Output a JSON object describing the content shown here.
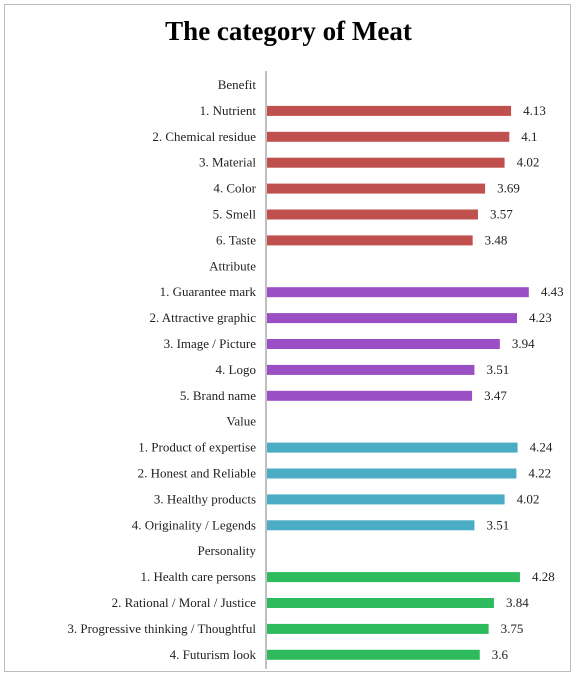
{
  "chart_data": {
    "type": "bar",
    "orientation": "horizontal",
    "title": "The category of Meat",
    "xlim": [
      0,
      5
    ],
    "grid": false,
    "legend": "none",
    "rows": [
      {
        "kind": "header",
        "label": "Benefit"
      },
      {
        "kind": "bar",
        "label": "1. Nutrient",
        "value": 4.13,
        "value_label": "4.13",
        "group": "Benefit"
      },
      {
        "kind": "bar",
        "label": "2. Chemical residue",
        "value": 4.1,
        "value_label": "4.1",
        "group": "Benefit"
      },
      {
        "kind": "bar",
        "label": "3. Material",
        "value": 4.02,
        "value_label": "4.02",
        "group": "Benefit"
      },
      {
        "kind": "bar",
        "label": "4. Color",
        "value": 3.69,
        "value_label": "3.69",
        "group": "Benefit"
      },
      {
        "kind": "bar",
        "label": "5. Smell",
        "value": 3.57,
        "value_label": "3.57",
        "group": "Benefit"
      },
      {
        "kind": "bar",
        "label": "6. Taste",
        "value": 3.48,
        "value_label": "3.48",
        "group": "Benefit"
      },
      {
        "kind": "header",
        "label": "Attribute"
      },
      {
        "kind": "bar",
        "label": "1. Guarantee mark",
        "value": 4.43,
        "value_label": "4.43",
        "group": "Attribute"
      },
      {
        "kind": "bar",
        "label": "2. Attractive graphic",
        "value": 4.23,
        "value_label": "4.23",
        "group": "Attribute"
      },
      {
        "kind": "bar",
        "label": "3. Image / Picture",
        "value": 3.94,
        "value_label": "3.94",
        "group": "Attribute"
      },
      {
        "kind": "bar",
        "label": "4. Logo",
        "value": 3.51,
        "value_label": "3.51",
        "group": "Attribute"
      },
      {
        "kind": "bar",
        "label": "5. Brand name",
        "value": 3.47,
        "value_label": "3.47",
        "group": "Attribute"
      },
      {
        "kind": "header",
        "label": "Value"
      },
      {
        "kind": "bar",
        "label": "1. Product of expertise",
        "value": 4.24,
        "value_label": "4.24",
        "group": "Value"
      },
      {
        "kind": "bar",
        "label": "2. Honest and Reliable",
        "value": 4.22,
        "value_label": "4.22",
        "group": "Value"
      },
      {
        "kind": "bar",
        "label": "3. Healthy products",
        "value": 4.02,
        "value_label": "4.02",
        "group": "Value"
      },
      {
        "kind": "bar",
        "label": "4. Originality  / Legends",
        "value": 3.51,
        "value_label": "3.51",
        "group": "Value"
      },
      {
        "kind": "header",
        "label": "Personality"
      },
      {
        "kind": "bar",
        "label": "1. Health care persons",
        "value": 4.28,
        "value_label": "4.28",
        "group": "Personality"
      },
      {
        "kind": "bar",
        "label": "2. Rational / Moral / Justice",
        "value": 3.84,
        "value_label": "3.84",
        "group": "Personality"
      },
      {
        "kind": "bar",
        "label": "3. Progressive  thinking / Thoughtful",
        "value": 3.75,
        "value_label": "3.75",
        "group": "Personality"
      },
      {
        "kind": "bar",
        "label": "4. Futurism look",
        "value": 3.6,
        "value_label": "3.6",
        "group": "Personality"
      }
    ],
    "group_colors": {
      "Benefit": "#c0504d",
      "Attribute": "#9b4fc4",
      "Value": "#4bacc6",
      "Personality": "#2dbb5d"
    },
    "axis_color": "#7f7f7f"
  }
}
